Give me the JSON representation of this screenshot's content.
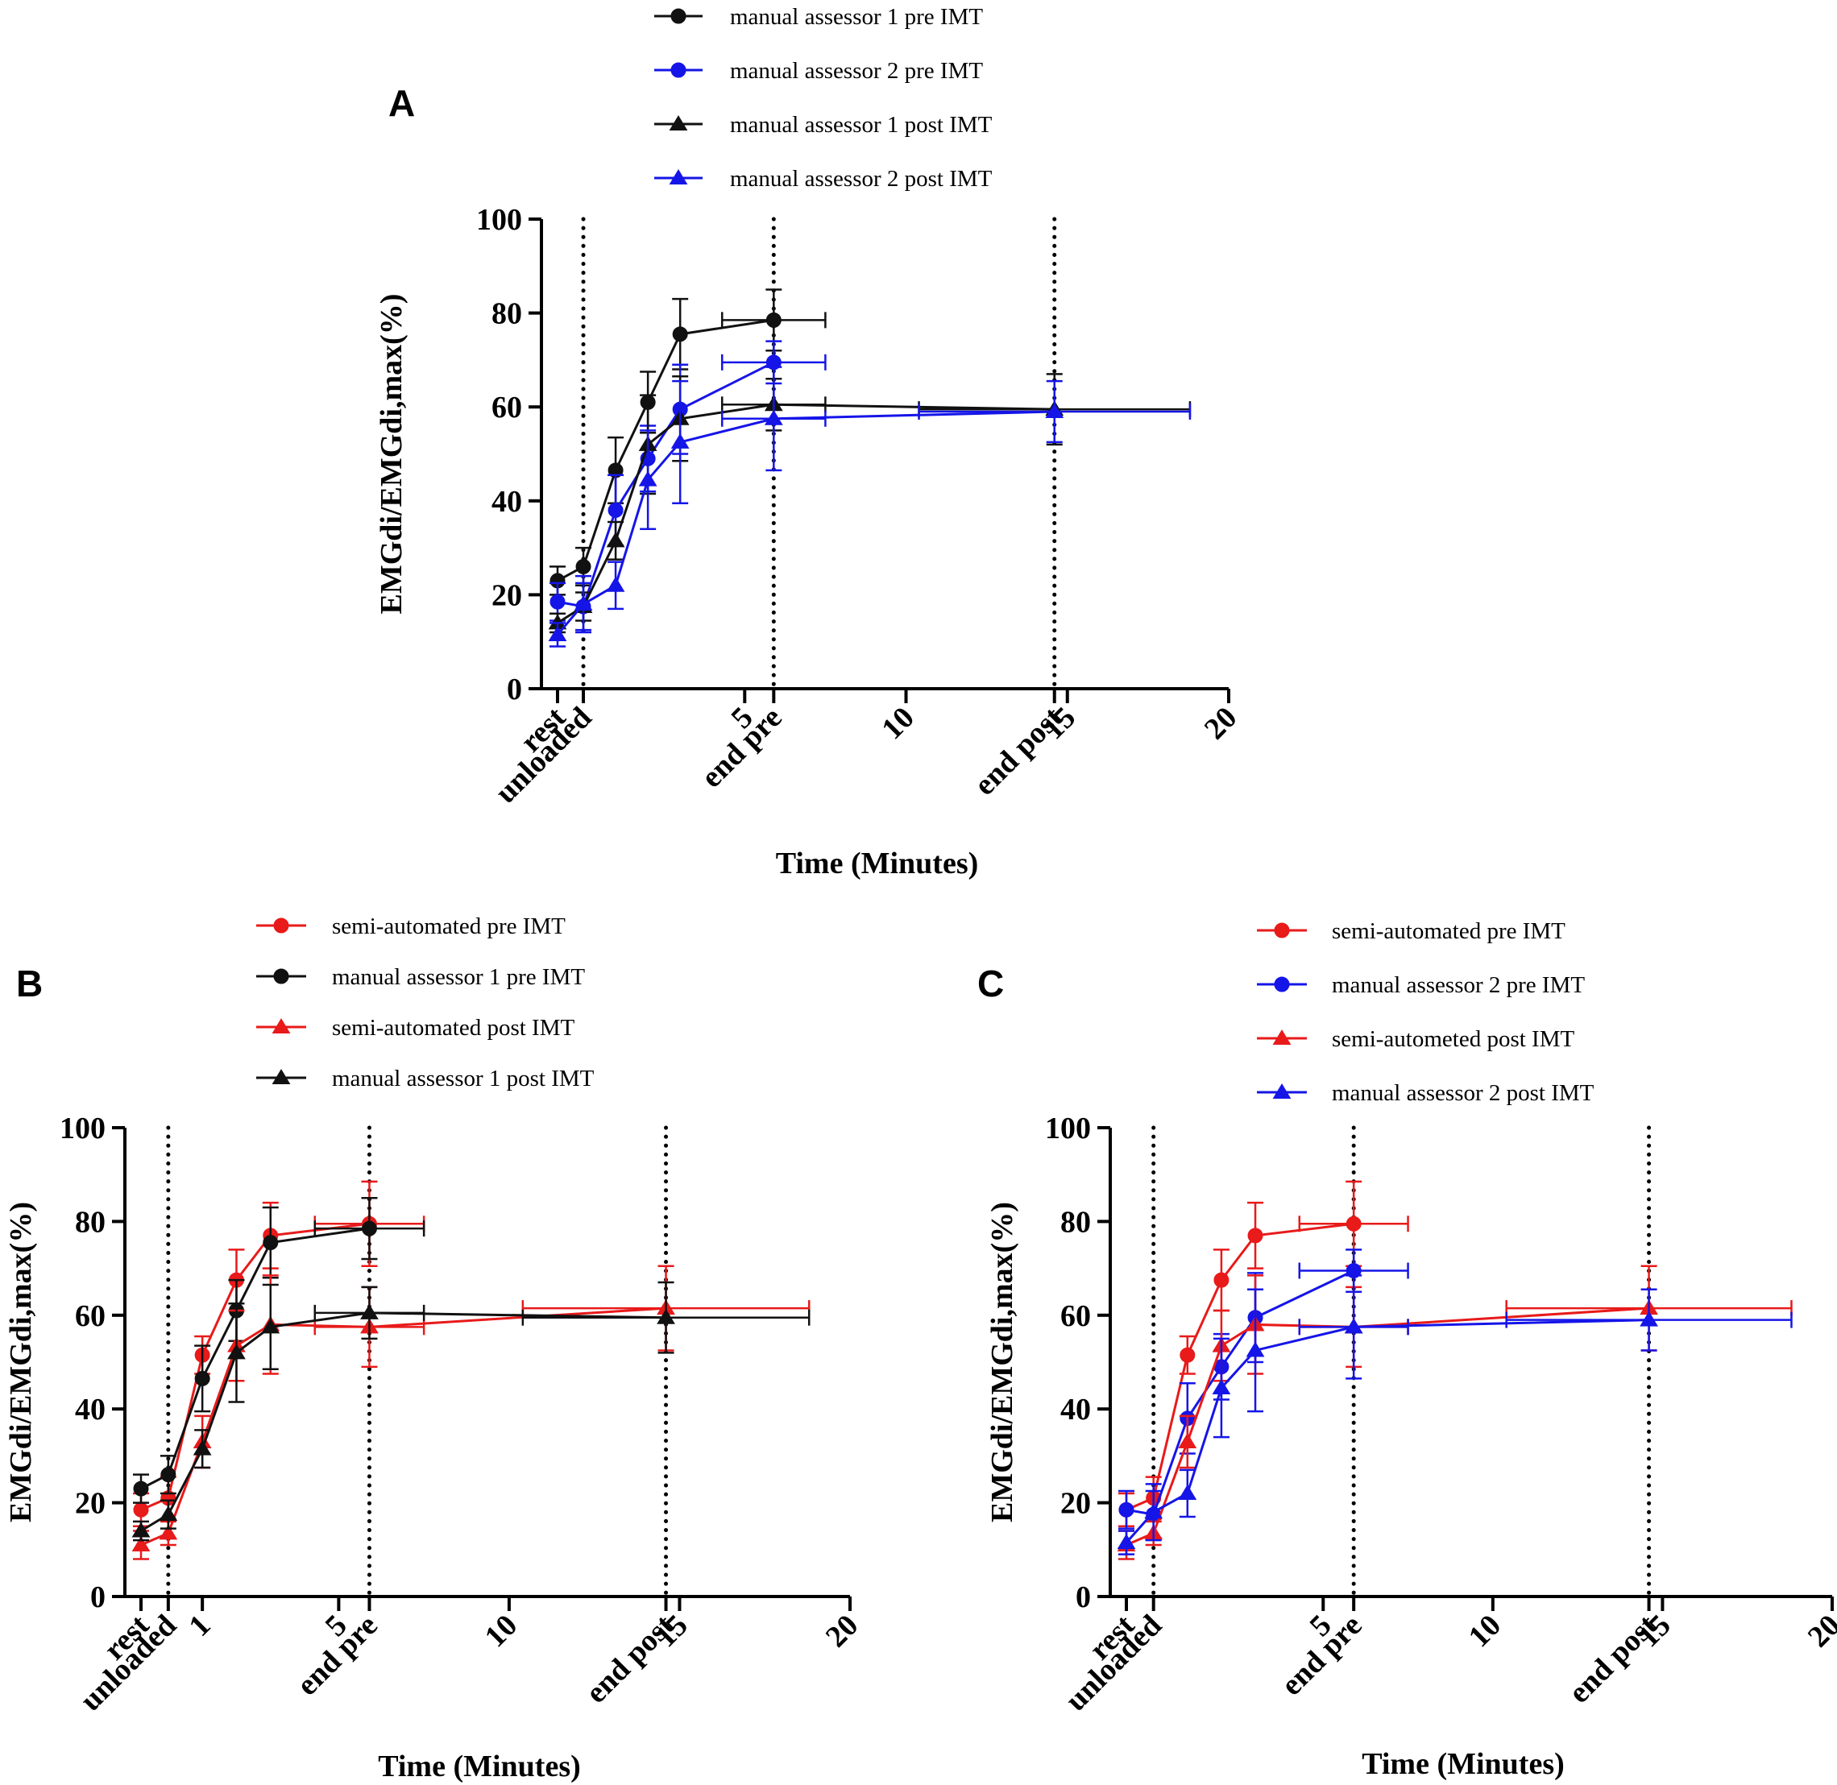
{
  "colors": {
    "black": "#111111",
    "blue": "#1515e8",
    "red": "#e81a1a"
  },
  "chart_data": [
    {
      "panel": "A",
      "type": "line",
      "xlabel": "Time (Minutes)",
      "ylabel": "EMGdi/EMGdi,max(%)",
      "xlim": [
        -0.8,
        20
      ],
      "ylim": [
        0,
        100
      ],
      "yticks": [
        0,
        20,
        40,
        60,
        80,
        100
      ],
      "xticks": [
        {
          "x": -0.8,
          "label": "rest"
        },
        {
          "x": 0,
          "label": "unloaded"
        },
        {
          "x": 5,
          "label": "5"
        },
        {
          "x": 5.9,
          "label": "end pre"
        },
        {
          "x": 10,
          "label": "10"
        },
        {
          "x": 14.6,
          "label": "end post"
        },
        {
          "x": 15,
          "label": "15"
        },
        {
          "x": 20,
          "label": "20"
        }
      ],
      "vlines": [
        0,
        5.9,
        14.6
      ],
      "series": [
        {
          "name": "manual assessor 1 pre IMT",
          "color": "black",
          "marker": "circle",
          "x": [
            -0.8,
            0,
            1,
            2,
            3,
            5.9
          ],
          "y": [
            23,
            26,
            46.5,
            61,
            75.5,
            78.5
          ],
          "yerr": [
            3,
            4,
            7,
            6.5,
            7.5,
            6.5
          ],
          "xerr": [
            0,
            0,
            0,
            0,
            0,
            1.6
          ]
        },
        {
          "name": "manual assessor 2 pre IMT",
          "color": "blue",
          "marker": "circle",
          "x": [
            -0.8,
            0,
            1,
            2,
            3,
            5.9
          ],
          "y": [
            18.5,
            17.5,
            38,
            49,
            59.5,
            69.5
          ],
          "yerr": [
            4,
            5,
            7.5,
            7,
            9.5,
            4.5
          ],
          "xerr": [
            0,
            0,
            0,
            0,
            0,
            1.6
          ]
        },
        {
          "name": "manual assessor 1 post IMT",
          "color": "black",
          "marker": "triangle",
          "x": [
            -0.8,
            0,
            1,
            2,
            3,
            5.9,
            14.6
          ],
          "y": [
            14,
            17.5,
            31.5,
            52,
            57.5,
            60.5,
            59.5
          ],
          "yerr": [
            2,
            3,
            4,
            10.5,
            9,
            5.5,
            7.5
          ],
          "xerr": [
            0,
            0,
            0,
            0,
            0,
            1.6,
            4.2
          ]
        },
        {
          "name": "manual assessor 2 post IMT",
          "color": "blue",
          "marker": "triangle",
          "x": [
            -0.8,
            0,
            1,
            2,
            3,
            5.9,
            14.6
          ],
          "y": [
            11.5,
            18,
            22,
            44.5,
            52.5,
            57.5,
            59
          ],
          "yerr": [
            2.5,
            6,
            5,
            10.5,
            13,
            11,
            6.5
          ],
          "xerr": [
            0,
            0,
            0,
            0,
            0,
            1.6,
            4.2
          ]
        }
      ]
    },
    {
      "panel": "B",
      "type": "line",
      "xlabel": "Time (Minutes)",
      "ylabel": "EMGdi/EMGdi,max(%)",
      "xlim": [
        -0.8,
        20
      ],
      "ylim": [
        0,
        100
      ],
      "yticks": [
        0,
        20,
        40,
        60,
        80,
        100
      ],
      "xticks": [
        {
          "x": -0.8,
          "label": "rest"
        },
        {
          "x": 0,
          "label": "unloaded"
        },
        {
          "x": 1,
          "label": "1"
        },
        {
          "x": 5,
          "label": "5"
        },
        {
          "x": 5.9,
          "label": "end pre"
        },
        {
          "x": 10,
          "label": "10"
        },
        {
          "x": 14.6,
          "label": "end post"
        },
        {
          "x": 15,
          "label": "15"
        },
        {
          "x": 20,
          "label": "20"
        }
      ],
      "vlines": [
        0,
        5.9,
        14.6
      ],
      "series": [
        {
          "name": "semi-automated pre IMT",
          "color": "red",
          "marker": "circle",
          "x": [
            -0.8,
            0,
            1,
            2,
            3,
            5.9
          ],
          "y": [
            18.5,
            21,
            51.5,
            67.5,
            77,
            79.5
          ],
          "yerr": [
            3.5,
            4.5,
            4,
            6.5,
            7,
            9
          ],
          "xerr": [
            0,
            0,
            0,
            0,
            0,
            1.6
          ]
        },
        {
          "name": "manual assessor 1  pre IMT",
          "color": "black",
          "marker": "circle",
          "x": [
            -0.8,
            0,
            1,
            2,
            3,
            5.9
          ],
          "y": [
            23,
            26,
            46.5,
            61,
            75.5,
            78.5
          ],
          "yerr": [
            3,
            4,
            7,
            6.5,
            7.5,
            6.5
          ],
          "xerr": [
            0,
            0,
            0,
            0,
            0,
            1.6
          ]
        },
        {
          "name": "semi-automated post IMT",
          "color": "red",
          "marker": "triangle",
          "x": [
            -0.8,
            0,
            1,
            2,
            3,
            5.9,
            14.6
          ],
          "y": [
            11,
            13.5,
            33,
            53.5,
            58,
            57.5,
            61.5
          ],
          "yerr": [
            3,
            2.5,
            5.5,
            7.5,
            10.5,
            8.5,
            9
          ],
          "xerr": [
            0,
            0,
            0,
            0,
            0,
            1.6,
            4.2
          ]
        },
        {
          "name": "manual assessor 1 post IMT",
          "color": "black",
          "marker": "triangle",
          "x": [
            -0.8,
            0,
            1,
            2,
            3,
            5.9,
            14.6
          ],
          "y": [
            14,
            17.5,
            31.5,
            52,
            57.5,
            60.5,
            59.5
          ],
          "yerr": [
            2,
            3,
            4,
            10.5,
            9,
            5.5,
            7.5
          ],
          "xerr": [
            0,
            0,
            0,
            0,
            0,
            1.6,
            4.2
          ]
        }
      ]
    },
    {
      "panel": "C",
      "type": "line",
      "xlabel": "Time (Minutes)",
      "ylabel": "EMGdi/EMGdi,max(%)",
      "xlim": [
        -0.8,
        20
      ],
      "ylim": [
        0,
        100
      ],
      "yticks": [
        0,
        20,
        40,
        60,
        80,
        100
      ],
      "xticks": [
        {
          "x": -0.8,
          "label": "rest"
        },
        {
          "x": 0,
          "label": "unloaded"
        },
        {
          "x": 5,
          "label": "5"
        },
        {
          "x": 5.9,
          "label": "end pre"
        },
        {
          "x": 10,
          "label": "10"
        },
        {
          "x": 14.6,
          "label": "end post"
        },
        {
          "x": 15,
          "label": "15"
        },
        {
          "x": 20,
          "label": "20"
        }
      ],
      "vlines": [
        0,
        5.9,
        14.6
      ],
      "series": [
        {
          "name": "semi-automated pre IMT",
          "color": "red",
          "marker": "circle",
          "x": [
            -0.8,
            0,
            1,
            2,
            3,
            5.9
          ],
          "y": [
            18.5,
            21,
            51.5,
            67.5,
            77,
            79.5
          ],
          "yerr": [
            3.5,
            4.5,
            4,
            6.5,
            7,
            9
          ],
          "xerr": [
            0,
            0,
            0,
            0,
            0,
            1.6
          ]
        },
        {
          "name": "manual assessor 2 pre IMT",
          "color": "blue",
          "marker": "circle",
          "x": [
            -0.8,
            0,
            1,
            2,
            3,
            5.9
          ],
          "y": [
            18.5,
            17.5,
            38,
            49,
            59.5,
            69.5
          ],
          "yerr": [
            4,
            5,
            7.5,
            7,
            9.5,
            4.5
          ],
          "xerr": [
            0,
            0,
            0,
            0,
            0,
            1.6
          ]
        },
        {
          "name": "semi-autometed post IMT",
          "color": "red",
          "marker": "triangle",
          "x": [
            -0.8,
            0,
            1,
            2,
            3,
            5.9,
            14.6
          ],
          "y": [
            11,
            13.5,
            33,
            53.5,
            58,
            57.5,
            61.5
          ],
          "yerr": [
            3,
            2.5,
            5.5,
            7.5,
            10.5,
            8.5,
            9
          ],
          "xerr": [
            0,
            0,
            0,
            0,
            0,
            1.6,
            4.2
          ]
        },
        {
          "name": "manual assessor 2 post IMT",
          "color": "blue",
          "marker": "triangle",
          "x": [
            -0.8,
            0,
            1,
            2,
            3,
            5.9,
            14.6
          ],
          "y": [
            11.5,
            18,
            22,
            44.5,
            52.5,
            57.5,
            59
          ],
          "yerr": [
            2.5,
            6,
            5,
            10.5,
            13,
            11,
            6.5
          ],
          "xerr": [
            0,
            0,
            0,
            0,
            0,
            1.6,
            4.2
          ]
        }
      ]
    }
  ]
}
